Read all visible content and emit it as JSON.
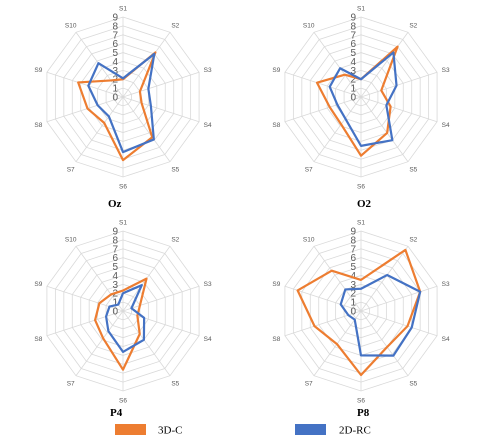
{
  "chart_data": {
    "type": "radar",
    "axis_labels": [
      "S1",
      "S2",
      "S3",
      "S4",
      "S5",
      "S6",
      "S7",
      "S8",
      "S9",
      "S10"
    ],
    "tick_labels": [
      "0",
      "1",
      "2",
      "3",
      "4",
      "5",
      "6",
      "7",
      "8",
      "9"
    ],
    "rlim": [
      0,
      9
    ],
    "grid": true,
    "legend": {
      "placement": "bottom",
      "entries": [
        {
          "name": "3D-C",
          "color": "#ED7D31"
        },
        {
          "name": "2D-RC",
          "color": "#4472C4"
        }
      ]
    },
    "panels": [
      {
        "title": "Oz",
        "series": [
          {
            "name": "3D-C",
            "values": [
              2.0,
              6.2,
              2.0,
              2.2,
              5.6,
              7.1,
              3.6,
              4.2,
              5.3,
              2.3
            ]
          },
          {
            "name": "2D-RC",
            "values": [
              2.1,
              6.0,
              3.0,
              3.3,
              5.9,
              6.2,
              2.7,
              3.0,
              4.1,
              4.7
            ]
          }
        ]
      },
      {
        "title": "O2",
        "series": [
          {
            "name": "3D-C",
            "values": [
              2.0,
              7.0,
              2.4,
              3.5,
              5.0,
              6.6,
              3.8,
              3.7,
              5.2,
              3.1
            ]
          },
          {
            "name": "2D-RC",
            "values": [
              2.0,
              6.2,
              4.2,
              3.0,
              6.0,
              5.5,
              3.0,
              2.8,
              3.7,
              4.0
            ]
          }
        ]
      },
      {
        "title": "P4",
        "series": [
          {
            "name": "3D-C",
            "values": [
              2.3,
              4.5,
              2.0,
              1.7,
              3.2,
              6.6,
              3.8,
              3.3,
              2.8,
              2.3
            ]
          },
          {
            "name": "2D-RC",
            "values": [
              2.0,
              3.6,
              1.0,
              2.5,
              4.0,
              4.6,
              2.8,
              2.0,
              1.6,
              0.9
            ]
          }
        ]
      },
      {
        "title": "P8",
        "series": [
          {
            "name": "3D-C",
            "values": [
              3.5,
              8.5,
              7.0,
              5.5,
              5.0,
              7.2,
              4.6,
              5.5,
              7.5,
              5.6
            ]
          },
          {
            "name": "2D-RC",
            "values": [
              2.5,
              5.0,
              7.0,
              6.0,
              6.2,
              5.0,
              1.2,
              1.5,
              2.4,
              3.0
            ]
          }
        ]
      }
    ]
  }
}
